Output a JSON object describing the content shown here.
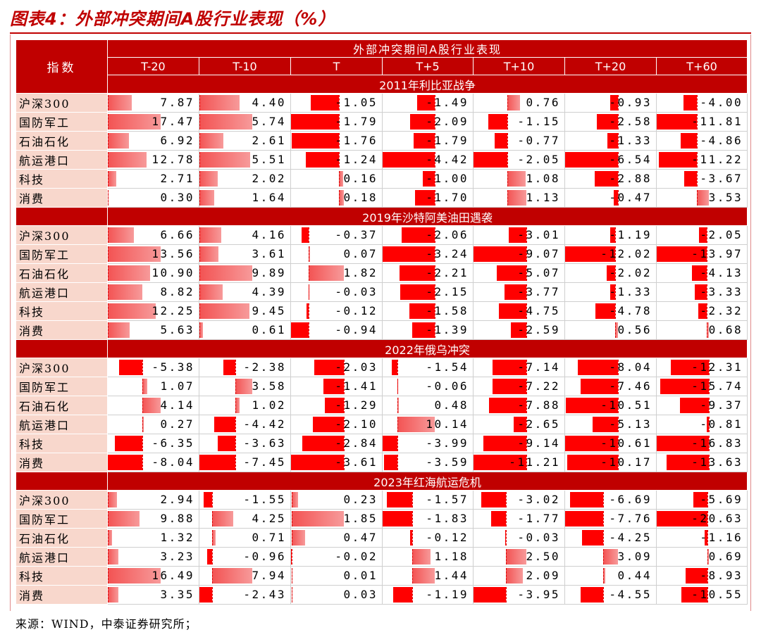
{
  "figure_title": "图表4：外部冲突期间A股行业表现（%）",
  "table": {
    "title": "外部冲突期间A股行业表现",
    "row_header": "指数",
    "columns": [
      "T-20",
      "T-10",
      "T",
      "T+5",
      "T+10",
      "T+20",
      "T+60"
    ],
    "sections": [
      {
        "name": "2011年利比亚战争",
        "rows": [
          {
            "label": "沪深300",
            "values": [
              "7.87",
              "4.40",
              "-1.05",
              "-1.49",
              "0.76",
              "-0.93",
              "-4.00"
            ]
          },
          {
            "label": "国防军工",
            "values": [
              "17.47",
              "5.74",
              "-1.79",
              "-2.09",
              "-1.15",
              "-2.58",
              "-11.81"
            ]
          },
          {
            "label": "石油石化",
            "values": [
              "6.92",
              "2.61",
              "-1.76",
              "-1.79",
              "-0.77",
              "-1.33",
              "-4.86"
            ]
          },
          {
            "label": "航运港口",
            "values": [
              "12.78",
              "5.51",
              "-1.24",
              "-4.42",
              "-2.05",
              "-6.54",
              "-11.22"
            ]
          },
          {
            "label": "科技",
            "values": [
              "2.71",
              "2.02",
              "0.16",
              "-1.00",
              "1.08",
              "-2.88",
              "-3.67"
            ]
          },
          {
            "label": "消费",
            "values": [
              "0.30",
              "1.64",
              "0.18",
              "-1.70",
              "1.13",
              "-0.47",
              "3.53"
            ]
          }
        ]
      },
      {
        "name": "2019年沙特阿美油田遇袭",
        "rows": [
          {
            "label": "沪深300",
            "values": [
              "6.66",
              "4.16",
              "-0.37",
              "-2.06",
              "-3.01",
              "-1.19",
              "-2.05"
            ]
          },
          {
            "label": "国防军工",
            "values": [
              "13.56",
              "3.61",
              "0.07",
              "-3.24",
              "-9.07",
              "-12.02",
              "-13.97"
            ]
          },
          {
            "label": "石油石化",
            "values": [
              "10.90",
              "9.89",
              "1.82",
              "-2.21",
              "-5.07",
              "-2.02",
              "-4.13"
            ]
          },
          {
            "label": "航运港口",
            "values": [
              "8.82",
              "4.39",
              "-0.03",
              "-2.15",
              "-3.77",
              "-1.33",
              "-3.33"
            ]
          },
          {
            "label": "科技",
            "values": [
              "12.25",
              "9.45",
              "-0.12",
              "-1.58",
              "-4.75",
              "-4.78",
              "-2.32"
            ]
          },
          {
            "label": "消费",
            "values": [
              "5.63",
              "0.61",
              "-0.94",
              "-1.39",
              "-2.59",
              "0.56",
              "0.68"
            ]
          }
        ]
      },
      {
        "name": "2022年俄乌冲突",
        "rows": [
          {
            "label": "沪深300",
            "values": [
              "-5.38",
              "-2.38",
              "-2.03",
              "-1.54",
              "-7.14",
              "-8.04",
              "-12.31"
            ]
          },
          {
            "label": "国防军工",
            "values": [
              "1.07",
              "3.58",
              "-1.41",
              "-0.06",
              "-7.22",
              "-7.46",
              "-15.74"
            ]
          },
          {
            "label": "石油石化",
            "values": [
              "4.14",
              "1.02",
              "-1.29",
              "0.48",
              "-7.88",
              "-10.51",
              "-9.37"
            ]
          },
          {
            "label": "航运港口",
            "values": [
              "0.27",
              "-4.42",
              "-2.10",
              "10.14",
              "-2.65",
              "-5.13",
              "-0.81"
            ]
          },
          {
            "label": "科技",
            "values": [
              "-6.35",
              "-3.63",
              "-2.84",
              "-3.99",
              "-9.14",
              "-10.61",
              "-16.83"
            ]
          },
          {
            "label": "消费",
            "values": [
              "-8.04",
              "-7.45",
              "-3.61",
              "-3.59",
              "-11.21",
              "-10.17",
              "-13.63"
            ]
          }
        ]
      },
      {
        "name": "2023年红海航运危机",
        "rows": [
          {
            "label": "沪深300",
            "values": [
              "2.94",
              "-1.55",
              "0.23",
              "-1.57",
              "-3.02",
              "-6.69",
              "-5.69"
            ]
          },
          {
            "label": "国防军工",
            "values": [
              "9.88",
              "4.25",
              "1.85",
              "-1.83",
              "-1.77",
              "-7.76",
              "-20.63"
            ]
          },
          {
            "label": "石油石化",
            "values": [
              "1.32",
              "0.71",
              "0.47",
              "-0.12",
              "-0.03",
              "-4.25",
              "-1.16"
            ]
          },
          {
            "label": "航运港口",
            "values": [
              "3.23",
              "-0.96",
              "-0.02",
              "1.18",
              "2.50",
              "3.09",
              "0.69"
            ]
          },
          {
            "label": "科技",
            "values": [
              "16.49",
              "7.94",
              "0.01",
              "1.44",
              "2.09",
              "0.44",
              "-8.93"
            ]
          },
          {
            "label": "消费",
            "values": [
              "3.35",
              "-2.43",
              "0.03",
              "-1.19",
              "-3.95",
              "-4.55",
              "-10.55"
            ]
          }
        ]
      }
    ]
  },
  "source": "来源：WIND，中泰证券研究所；",
  "colors": {
    "accent": "#c00000",
    "row_label_bg": "#f8d7cc",
    "bar": "#ff0000"
  }
}
